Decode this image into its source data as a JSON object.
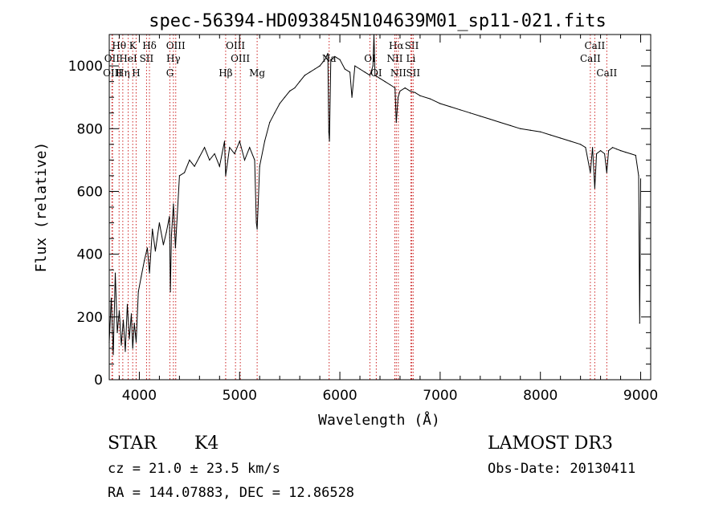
{
  "chart_data": {
    "type": "line",
    "title": "spec-56394-HD093845N104639M01_sp11-021.fits",
    "xlabel": "Wavelength (Å)",
    "ylabel": "Flux (relative)",
    "xlim": [
      3700,
      9100
    ],
    "ylim": [
      0,
      1100
    ],
    "xticks": [
      4000,
      5000,
      6000,
      7000,
      8000,
      9000
    ],
    "yticks": [
      0,
      200,
      400,
      600,
      800,
      1000
    ],
    "grid": false,
    "series": [
      {
        "name": "flux",
        "x": [
          3700,
          3720,
          3740,
          3760,
          3780,
          3800,
          3820,
          3840,
          3860,
          3880,
          3900,
          3920,
          3934,
          3950,
          3968,
          3990,
          4020,
          4050,
          4080,
          4101,
          4130,
          4160,
          4200,
          4240,
          4270,
          4300,
          4310,
          4320,
          4340,
          4360,
          4400,
          4450,
          4500,
          4550,
          4600,
          4650,
          4700,
          4750,
          4800,
          4850,
          4861,
          4900,
          4950,
          5000,
          5050,
          5100,
          5150,
          5167,
          5175,
          5185,
          5200,
          5250,
          5300,
          5350,
          5400,
          5450,
          5500,
          5550,
          5600,
          5650,
          5700,
          5750,
          5800,
          5850,
          5880,
          5890,
          5896,
          5910,
          5950,
          6000,
          6050,
          6100,
          6120,
          6150,
          6200,
          6250,
          6300,
          6330,
          6340,
          6350,
          6400,
          6450,
          6500,
          6550,
          6563,
          6580,
          6600,
          6650,
          6700,
          6750,
          6800,
          6900,
          7000,
          7100,
          7200,
          7300,
          7400,
          7500,
          7600,
          7700,
          7800,
          7900,
          8000,
          8100,
          8200,
          8300,
          8400,
          8450,
          8498,
          8520,
          8542,
          8560,
          8600,
          8640,
          8662,
          8680,
          8720,
          8760,
          8800,
          8850,
          8900,
          8950,
          8980,
          8990,
          9000
        ],
        "values": [
          120,
          260,
          80,
          340,
          150,
          220,
          110,
          190,
          90,
          240,
          130,
          210,
          100,
          180,
          120,
          280,
          330,
          380,
          420,
          340,
          480,
          410,
          500,
          430,
          470,
          520,
          280,
          460,
          560,
          420,
          650,
          660,
          700,
          680,
          710,
          740,
          700,
          720,
          680,
          760,
          650,
          740,
          720,
          760,
          700,
          740,
          700,
          500,
          480,
          560,
          680,
          760,
          820,
          850,
          880,
          900,
          920,
          930,
          950,
          970,
          980,
          990,
          1000,
          1020,
          1040,
          790,
          760,
          1020,
          1030,
          1020,
          990,
          980,
          900,
          1000,
          990,
          980,
          970,
          1000,
          1100,
          970,
          960,
          950,
          940,
          930,
          820,
          900,
          920,
          930,
          920,
          915,
          905,
          895,
          880,
          870,
          860,
          850,
          840,
          830,
          820,
          810,
          800,
          795,
          790,
          780,
          770,
          760,
          750,
          740,
          660,
          740,
          610,
          720,
          730,
          720,
          660,
          730,
          740,
          735,
          730,
          725,
          720,
          715,
          650,
          180,
          640
        ]
      }
    ],
    "lines": [
      {
        "name": "Hθ",
        "wave": 3798,
        "row": 1
      },
      {
        "name": "OII",
        "wave": 3727,
        "row": 2
      },
      {
        "name": "OIII",
        "wave": 3733,
        "row": 3
      },
      {
        "name": "Hη",
        "wave": 3835,
        "row": 3
      },
      {
        "name": "K",
        "wave": 3934,
        "row": 1
      },
      {
        "name": "HeI",
        "wave": 3889,
        "row": 2
      },
      {
        "name": "H",
        "wave": 3968,
        "row": 3
      },
      {
        "name": "SII",
        "wave": 4072,
        "row": 2
      },
      {
        "name": "Hδ",
        "wave": 4101,
        "row": 1
      },
      {
        "name": "OIII",
        "wave": 4363,
        "row": 1
      },
      {
        "name": "Hγ",
        "wave": 4340,
        "row": 2
      },
      {
        "name": "G",
        "wave": 4305,
        "row": 3
      },
      {
        "name": "OIII",
        "wave": 4959,
        "row": 1
      },
      {
        "name": "OIII",
        "wave": 5007,
        "row": 2
      },
      {
        "name": "Hβ",
        "wave": 4861,
        "row": 3
      },
      {
        "name": "Mg",
        "wave": 5175,
        "row": 3
      },
      {
        "name": "Na",
        "wave": 5893,
        "row": 2
      },
      {
        "name": "OI",
        "wave": 6300,
        "row": 2
      },
      {
        "name": "OI",
        "wave": 6363,
        "row": 3
      },
      {
        "name": "Hα",
        "wave": 6563,
        "row": 1
      },
      {
        "name": "SII",
        "wave": 6717,
        "row": 1
      },
      {
        "name": "NII",
        "wave": 6548,
        "row": 2
      },
      {
        "name": "Li",
        "wave": 6708,
        "row": 2
      },
      {
        "name": "NII",
        "wave": 6583,
        "row": 3
      },
      {
        "name": "SII",
        "wave": 6731,
        "row": 3
      },
      {
        "name": "CaII",
        "wave": 8542,
        "row": 1
      },
      {
        "name": "CaII",
        "wave": 8498,
        "row": 2
      },
      {
        "name": "CaII",
        "wave": 8662,
        "row": 3
      }
    ]
  },
  "info": {
    "object_type": "STAR",
    "subclass": "K4",
    "survey": "LAMOST DR3",
    "redshift": "cz = 21.0 ± 23.5 km/s",
    "obs_date": "Obs-Date: 20130411",
    "coords": "RA = 144.07883, DEC =  12.86528"
  }
}
